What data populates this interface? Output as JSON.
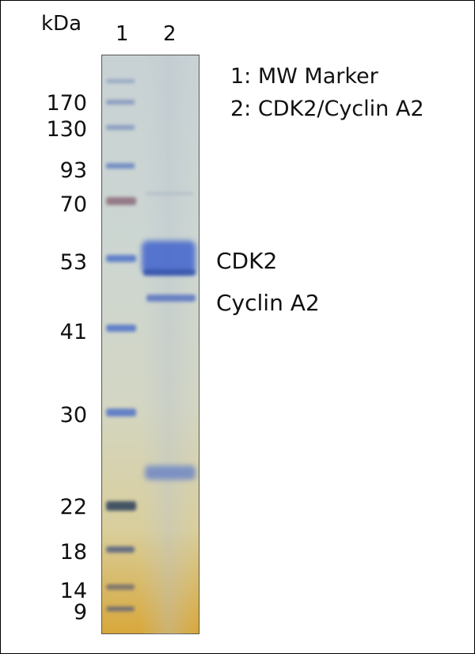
{
  "unit_label": "kDa",
  "lanes": [
    "1",
    "2"
  ],
  "marker_labels": [
    "170",
    "130",
    "93",
    "70",
    "53",
    "41",
    "30",
    "22",
    "18",
    "14",
    "9"
  ],
  "legend": [
    "1: MW Marker",
    "2: CDK2/Cyclin A2"
  ],
  "band_labels": [
    "CDK2",
    "Cyclin A2"
  ],
  "colors": {
    "band": "#3e5fc4",
    "gel_top": "#c8d2d4",
    "gel_bottom": "#d8a83b"
  }
}
